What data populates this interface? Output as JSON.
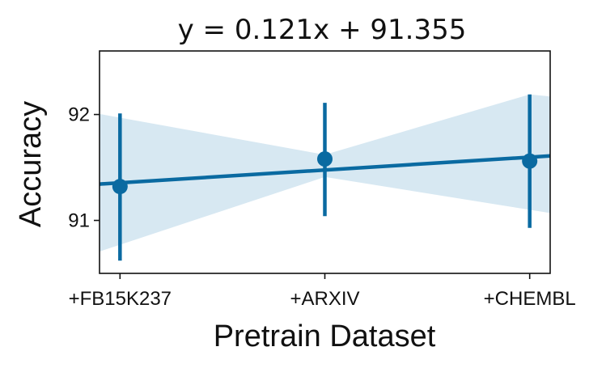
{
  "chart_data": {
    "type": "scatter",
    "title": "y = 0.121x + 91.355",
    "xlabel": "Pretrain Dataset",
    "ylabel": "Accuracy",
    "categories": [
      "+FB15K237",
      "+ARXIV",
      "+CHEMBL"
    ],
    "x": [
      0,
      1,
      2
    ],
    "xlim": [
      -0.1,
      2.1
    ],
    "ylim": [
      90.5,
      92.6
    ],
    "yticks": [
      91,
      92
    ],
    "ytick_labels": [
      "91",
      "92"
    ],
    "grid": false,
    "legend": "none",
    "series": [
      {
        "means": [
          91.32,
          91.58,
          91.56
        ],
        "err_low": [
          90.62,
          91.04,
          90.93
        ],
        "err_high": [
          92.01,
          92.11,
          92.19
        ]
      }
    ],
    "regression": {
      "slope": 0.121,
      "intercept": 91.355,
      "ci_low": [
        90.77,
        91.41,
        91.1
      ],
      "ci_high": [
        91.97,
        91.62,
        92.19
      ]
    },
    "colors": {
      "marker": "#0a6aa1",
      "line": "#0a6aa1",
      "band": "#d7e8f2",
      "axis": "#111111"
    }
  }
}
